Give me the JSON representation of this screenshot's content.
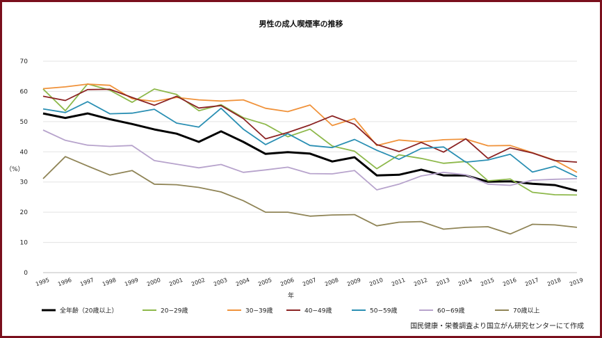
{
  "chart_data": {
    "type": "line",
    "title": "男性の成人喫煙率の推移",
    "xlabel": "年",
    "ylabel": "（%）",
    "ylim": [
      0,
      70
    ],
    "yticks": [
      0,
      10,
      20,
      30,
      40,
      50,
      60,
      70
    ],
    "grid": true,
    "legend_position": "bottom",
    "source_note": "国民健康・栄養調査より国立がん研究センターにて作成",
    "categories": [
      "1995",
      "1996",
      "1997",
      "1998",
      "1999",
      "2000",
      "2001",
      "2002",
      "2003",
      "2004",
      "2005",
      "2006",
      "2007",
      "2008",
      "2009",
      "2010",
      "2011",
      "2012",
      "2013",
      "2014",
      "2015",
      "2016",
      "2017",
      "2018",
      "2019"
    ],
    "series": [
      {
        "name": "全年齢（20歳以上）",
        "color": "#000000",
        "bold": true,
        "values": [
          52.7,
          51.2,
          52.7,
          50.8,
          49.2,
          47.4,
          46.0,
          43.3,
          46.8,
          43.3,
          39.3,
          39.9,
          39.4,
          36.8,
          38.2,
          32.2,
          32.4,
          34.1,
          32.2,
          32.2,
          30.1,
          30.2,
          29.4,
          29.0,
          27.1
        ]
      },
      {
        "name": "20−29歳",
        "color": "#8db84a",
        "values": [
          60.8,
          53.6,
          62.5,
          60.4,
          56.4,
          60.8,
          59.0,
          53.6,
          55.6,
          51.3,
          49.1,
          45.0,
          47.5,
          41.9,
          40.2,
          34.4,
          39.0,
          37.8,
          36.2,
          36.8,
          30.4,
          31.0,
          26.6,
          25.8,
          25.7
        ]
      },
      {
        "name": "30−39歳",
        "color": "#f0923a",
        "values": [
          60.9,
          61.5,
          62.4,
          62.0,
          57.6,
          56.7,
          58.0,
          57.2,
          56.8,
          57.2,
          54.4,
          53.3,
          55.5,
          48.7,
          51.0,
          42.1,
          43.9,
          43.3,
          44.0,
          44.2,
          42.0,
          42.1,
          39.7,
          37.2,
          33.2
        ]
      },
      {
        "name": "40−49歳",
        "color": "#8b2323",
        "values": [
          58.4,
          57.0,
          60.6,
          60.7,
          58.0,
          55.4,
          58.4,
          54.5,
          55.3,
          51.0,
          44.3,
          46.4,
          48.9,
          51.9,
          49.1,
          42.4,
          40.1,
          43.1,
          39.9,
          44.3,
          37.8,
          41.3,
          39.6,
          37.1,
          36.6
        ]
      },
      {
        "name": "50−59歳",
        "color": "#2a8fb3",
        "values": [
          54.2,
          53.0,
          56.6,
          52.6,
          52.8,
          54.1,
          49.5,
          48.2,
          54.4,
          47.5,
          42.4,
          46.0,
          42.1,
          41.4,
          44.1,
          40.5,
          37.5,
          41.1,
          41.6,
          36.6,
          37.3,
          39.2,
          33.3,
          35.2,
          31.7
        ]
      },
      {
        "name": "60−69歳",
        "color": "#b7a3cc",
        "values": [
          47.2,
          43.8,
          42.2,
          41.8,
          42.1,
          37.1,
          35.9,
          34.7,
          35.8,
          33.2,
          34.0,
          34.9,
          32.8,
          32.7,
          33.8,
          27.4,
          29.3,
          32.0,
          33.2,
          32.4,
          29.3,
          28.9,
          30.6,
          30.9,
          31.1
        ]
      },
      {
        "name": "70歳以上",
        "color": "#8f8456",
        "values": [
          31.1,
          38.4,
          35.3,
          32.3,
          33.8,
          29.3,
          29.1,
          28.2,
          26.7,
          23.8,
          20.0,
          20.0,
          18.7,
          19.1,
          19.2,
          15.5,
          16.7,
          16.9,
          14.4,
          15.0,
          15.2,
          12.8,
          16.0,
          15.8,
          15.0
        ]
      }
    ]
  }
}
